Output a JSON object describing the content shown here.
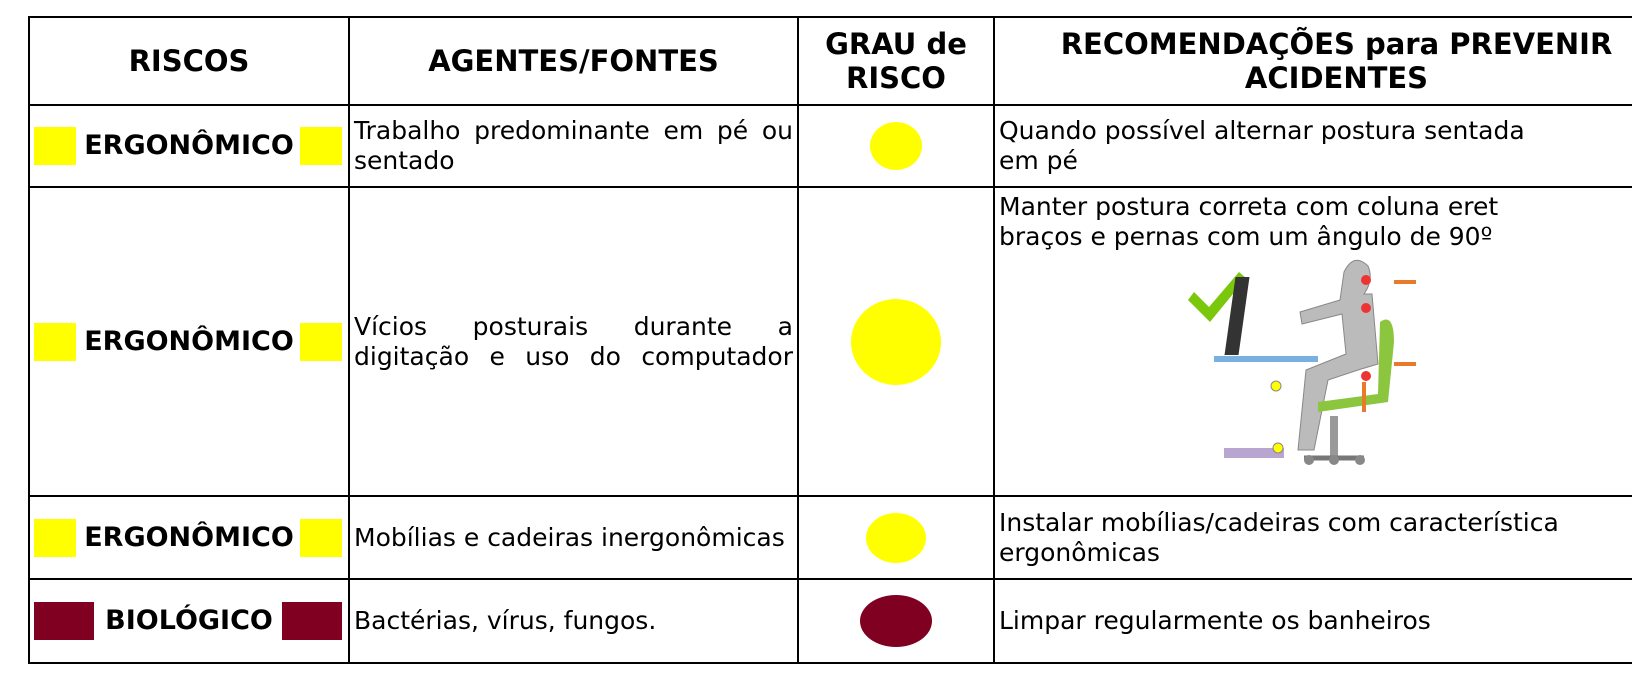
{
  "table": {
    "header": [
      "RISCOS",
      "AGENTES/FONTES",
      "GRAU de RISCO",
      "RECOMENDAÇÕES para PREVENIR ACIDENTES"
    ],
    "rows": [
      [
        "ERGONÔMICO",
        "Trabalho predominante em pé ou sentado",
        "Quando possível alternar postura sentada",
        "em pé"
      ],
      [
        "ERGONÔMICO",
        "Vícios posturais durante a digitação e uso do computador",
        "Manter postura correta com coluna eret",
        "braços e pernas com um ângulo de 90º"
      ],
      [
        "ERGONÔMICO",
        "Mobílias e cadeiras inergonômicas",
        "Instalar mobílias/cadeiras com característica",
        "ergonômicas"
      ],
      [
        "BIOLÓGICO",
        "Bactérias, vírus, fungos.",
        "Limpar regularmente os banheiros",
        ""
      ]
    ]
  }
}
